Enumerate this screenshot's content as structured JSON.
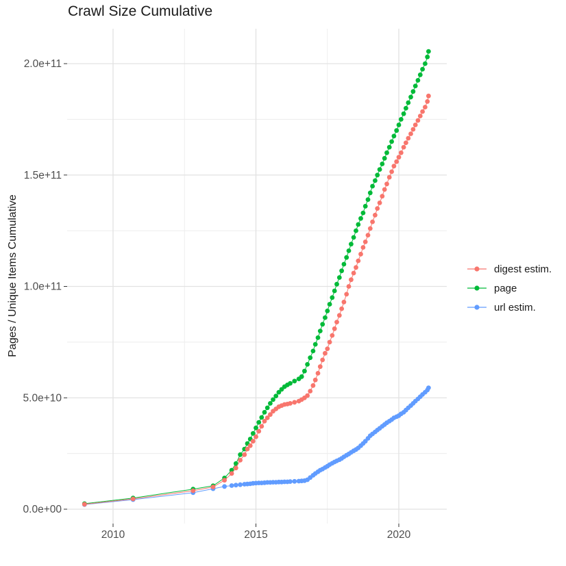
{
  "chart_data": {
    "type": "line",
    "marker": "circle",
    "title": "Crawl Size Cumulative",
    "xlabel": "",
    "ylabel": "Pages / Unique Items Cumulative",
    "grid": true,
    "legend_position": "right",
    "value_unit": 10000000000,
    "xlim": [
      2008.39,
      2021.68
    ],
    "ylim_units": [
      -0.58,
      21.57
    ],
    "x_ticks": {
      "major": [
        2010,
        2015,
        2020
      ],
      "minor": [
        2012.5,
        2017.5
      ],
      "labels": [
        "2010",
        "2015",
        "2020"
      ]
    },
    "y_ticks": {
      "major": [
        0,
        5,
        10,
        15,
        20
      ],
      "minor": [
        2.5,
        7.5,
        12.5,
        17.5
      ],
      "labels": [
        "0.0e+00",
        "5.0e+10",
        "1.0e+11",
        "1.5e+11",
        "2.0e+11"
      ]
    },
    "x": [
      2009.0,
      2010.7,
      2012.8,
      2013.5,
      2013.9,
      2014.15,
      2014.3,
      2014.45,
      2014.6,
      2014.7,
      2014.8,
      2014.9,
      2015.0,
      2015.1,
      2015.2,
      2015.3,
      2015.4,
      2015.5,
      2015.6,
      2015.7,
      2015.8,
      2015.9,
      2016.0,
      2016.1,
      2016.2,
      2016.35,
      2016.5,
      2016.6,
      2016.7,
      2016.8,
      2016.9,
      2017.0,
      2017.08,
      2017.17,
      2017.25,
      2017.33,
      2017.42,
      2017.5,
      2017.58,
      2017.67,
      2017.75,
      2017.83,
      2017.92,
      2018.0,
      2018.08,
      2018.17,
      2018.25,
      2018.33,
      2018.42,
      2018.5,
      2018.58,
      2018.67,
      2018.75,
      2018.83,
      2018.92,
      2019.0,
      2019.08,
      2019.17,
      2019.25,
      2019.33,
      2019.42,
      2019.5,
      2019.58,
      2019.67,
      2019.75,
      2019.83,
      2019.92,
      2020.0,
      2020.08,
      2020.17,
      2020.25,
      2020.33,
      2020.42,
      2020.5,
      2020.58,
      2020.67,
      2020.75,
      2020.83,
      2020.92,
      2021.0,
      2021.04
    ],
    "series": [
      {
        "name": "digest estim.",
        "color": "#F8766D",
        "values_in_units": [
          0.22,
          0.46,
          0.83,
          1.0,
          1.3,
          1.6,
          1.85,
          2.2,
          2.45,
          2.7,
          2.85,
          3.05,
          3.25,
          3.5,
          3.72,
          3.95,
          4.1,
          4.25,
          4.4,
          4.5,
          4.6,
          4.65,
          4.7,
          4.72,
          4.75,
          4.8,
          4.85,
          4.92,
          5.0,
          5.1,
          5.3,
          5.55,
          5.8,
          6.1,
          6.4,
          6.7,
          7.0,
          7.2,
          7.5,
          7.8,
          8.1,
          8.4,
          8.7,
          9.0,
          9.3,
          9.65,
          10.0,
          10.3,
          10.6,
          10.85,
          11.15,
          11.45,
          11.75,
          12.0,
          12.3,
          12.6,
          12.9,
          13.2,
          13.5,
          13.75,
          14.05,
          14.35,
          14.6,
          14.9,
          15.15,
          15.4,
          15.6,
          15.8,
          16.0,
          16.25,
          16.45,
          16.65,
          16.85,
          17.05,
          17.25,
          17.45,
          17.65,
          17.85,
          18.05,
          18.3,
          18.55
        ]
      },
      {
        "name": "page",
        "color": "#00BA38",
        "values_in_units": [
          0.25,
          0.5,
          0.9,
          1.05,
          1.4,
          1.75,
          2.05,
          2.45,
          2.7,
          2.95,
          3.15,
          3.4,
          3.65,
          3.9,
          4.12,
          4.35,
          4.55,
          4.75,
          4.92,
          5.08,
          5.25,
          5.38,
          5.5,
          5.58,
          5.65,
          5.75,
          5.85,
          5.95,
          6.2,
          6.5,
          6.8,
          7.1,
          7.4,
          7.7,
          8.0,
          8.3,
          8.6,
          8.9,
          9.2,
          9.5,
          9.8,
          10.1,
          10.4,
          10.7,
          11.0,
          11.3,
          11.6,
          11.9,
          12.2,
          12.5,
          12.78,
          13.05,
          13.3,
          13.6,
          13.9,
          14.2,
          14.5,
          14.75,
          15.0,
          15.25,
          15.5,
          15.75,
          16.0,
          16.25,
          16.5,
          16.75,
          17.0,
          17.25,
          17.5,
          17.75,
          18.0,
          18.25,
          18.5,
          18.75,
          19.0,
          19.25,
          19.5,
          19.75,
          20.0,
          20.3,
          20.55
        ]
      },
      {
        "name": "url estim.",
        "color": "#619CFF",
        "values_in_units": [
          0.21,
          0.43,
          0.74,
          0.92,
          1.02,
          1.06,
          1.08,
          1.1,
          1.12,
          1.13,
          1.14,
          1.16,
          1.17,
          1.18,
          1.18,
          1.19,
          1.2,
          1.2,
          1.21,
          1.21,
          1.22,
          1.22,
          1.23,
          1.23,
          1.24,
          1.25,
          1.26,
          1.27,
          1.28,
          1.32,
          1.42,
          1.52,
          1.6,
          1.68,
          1.75,
          1.8,
          1.87,
          1.93,
          2.0,
          2.06,
          2.12,
          2.17,
          2.22,
          2.28,
          2.35,
          2.42,
          2.48,
          2.55,
          2.62,
          2.68,
          2.75,
          2.85,
          2.95,
          3.05,
          3.18,
          3.3,
          3.38,
          3.47,
          3.55,
          3.63,
          3.72,
          3.8,
          3.88,
          3.95,
          4.02,
          4.1,
          4.15,
          4.2,
          4.28,
          4.35,
          4.45,
          4.55,
          4.65,
          4.75,
          4.85,
          4.95,
          5.05,
          5.15,
          5.25,
          5.35,
          5.45
        ]
      }
    ],
    "style": {
      "grid_major_color": "#e2e2e2",
      "grid_minor_color": "#ececec",
      "tick_color": "#333333",
      "axis_text_color": "#4d4d4d",
      "background": "#ffffff"
    }
  }
}
